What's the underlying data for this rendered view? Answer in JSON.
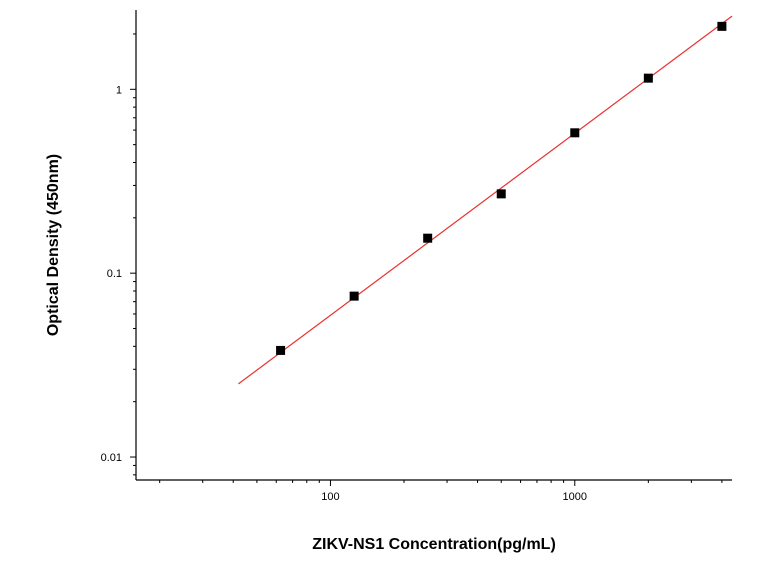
{
  "chart_data": {
    "type": "scatter",
    "title": "",
    "xlabel": "ZIKV-NS1 Concentration(pg/mL)",
    "ylabel": "Optical Density (450nm)",
    "x_scale": "log",
    "y_scale": "log",
    "xlim": [
      16,
      4400
    ],
    "ylim": [
      0.0075,
      2.7
    ],
    "x_ticks": [
      {
        "value": 100,
        "label": "100"
      },
      {
        "value": 1000,
        "label": "1000"
      }
    ],
    "y_ticks": [
      {
        "value": 0.01,
        "label": "0.01"
      },
      {
        "value": 0.1,
        "label": "0.1"
      },
      {
        "value": 1,
        "label": "1"
      }
    ],
    "grid": false,
    "legend": "none",
    "series": [
      {
        "kind": "points",
        "color": "#000000",
        "x": [
          62.5,
          125,
          250,
          500,
          1000,
          2000,
          4000
        ],
        "y": [
          0.038,
          0.075,
          0.155,
          0.27,
          0.58,
          1.15,
          2.2
        ]
      },
      {
        "kind": "fit-line",
        "color": "#e8312f",
        "x": [
          42,
          4400
        ],
        "y": [
          0.025,
          2.5
        ]
      }
    ]
  }
}
